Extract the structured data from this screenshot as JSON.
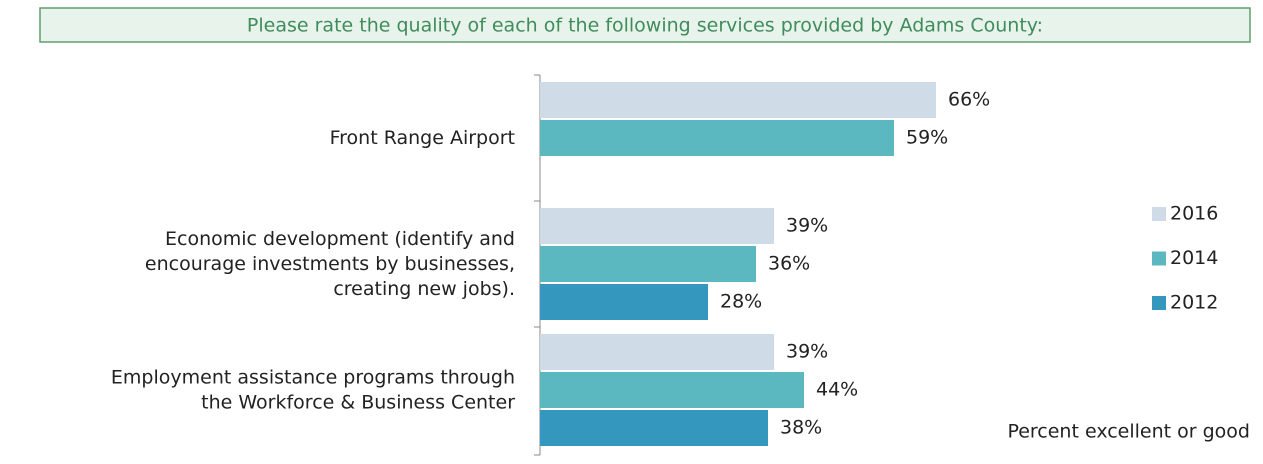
{
  "chart_data": {
    "type": "hbar",
    "title": "Please rate the quality of each of the following services provided by Adams County:",
    "categories": [
      "Front Range Airport",
      "Economic development (identify and\nencourage investments by businesses,\ncreating new jobs).",
      "Employment assistance programs through\nthe Workforce & Business Center"
    ],
    "series": [
      {
        "name": "2016",
        "color": "#cfdbe6",
        "values": [
          66,
          39,
          39
        ],
        "value_labels": [
          "66%",
          "39%",
          "39%"
        ]
      },
      {
        "name": "2014",
        "color": "#5bb8c1",
        "values": [
          59,
          36,
          44
        ],
        "value_labels": [
          "59%",
          "36%",
          "44%"
        ]
      },
      {
        "name": "2012",
        "color": "#3497be",
        "values": [
          null,
          28,
          38
        ],
        "value_labels": [
          null,
          "28%",
          "38%"
        ]
      }
    ],
    "annotation": "Percent excellent or good",
    "legend": "right"
  }
}
